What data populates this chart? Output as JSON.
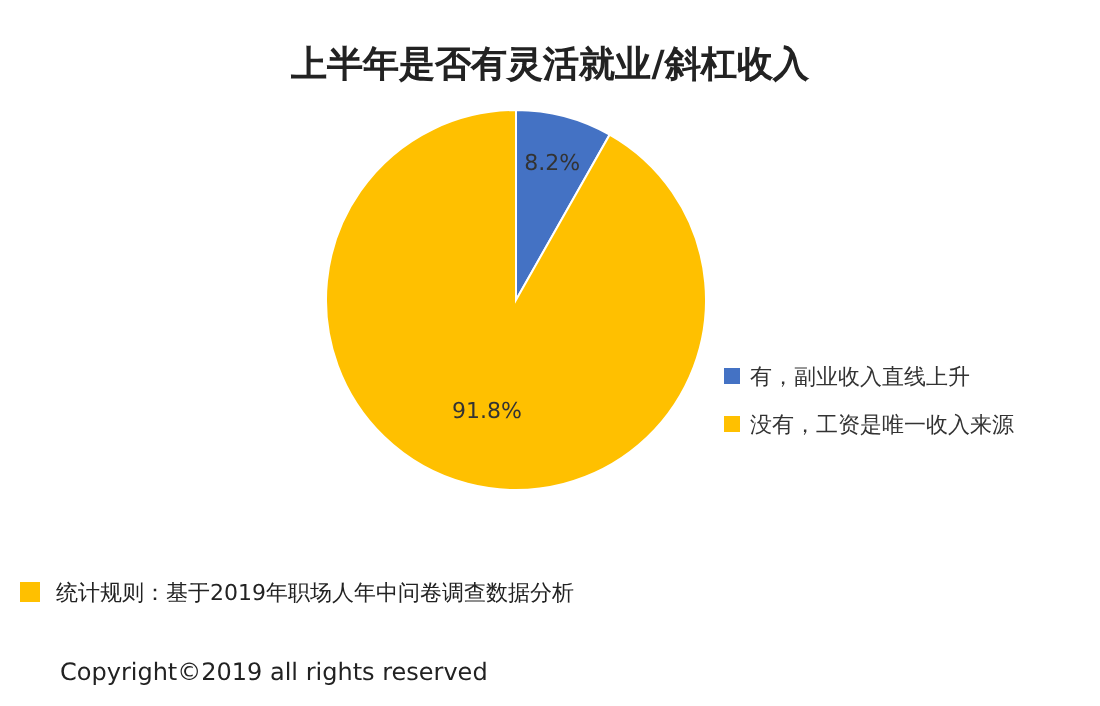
{
  "chart_data": {
    "type": "pie",
    "title": "上半年是否有灵活就业/斜杠收入",
    "categories": [
      "有，副业收入直线上升",
      "没有，工资是唯一收入来源"
    ],
    "values": [
      8.2,
      91.8
    ],
    "value_labels": [
      "8.2%",
      "91.8%"
    ],
    "colors": [
      "#4472c4",
      "#ffc000"
    ],
    "legend": "right",
    "annotations": [
      "统计规则：基于2019年职场人年中问卷调查数据分析",
      "Copyright©2019 all rights reserved"
    ]
  }
}
